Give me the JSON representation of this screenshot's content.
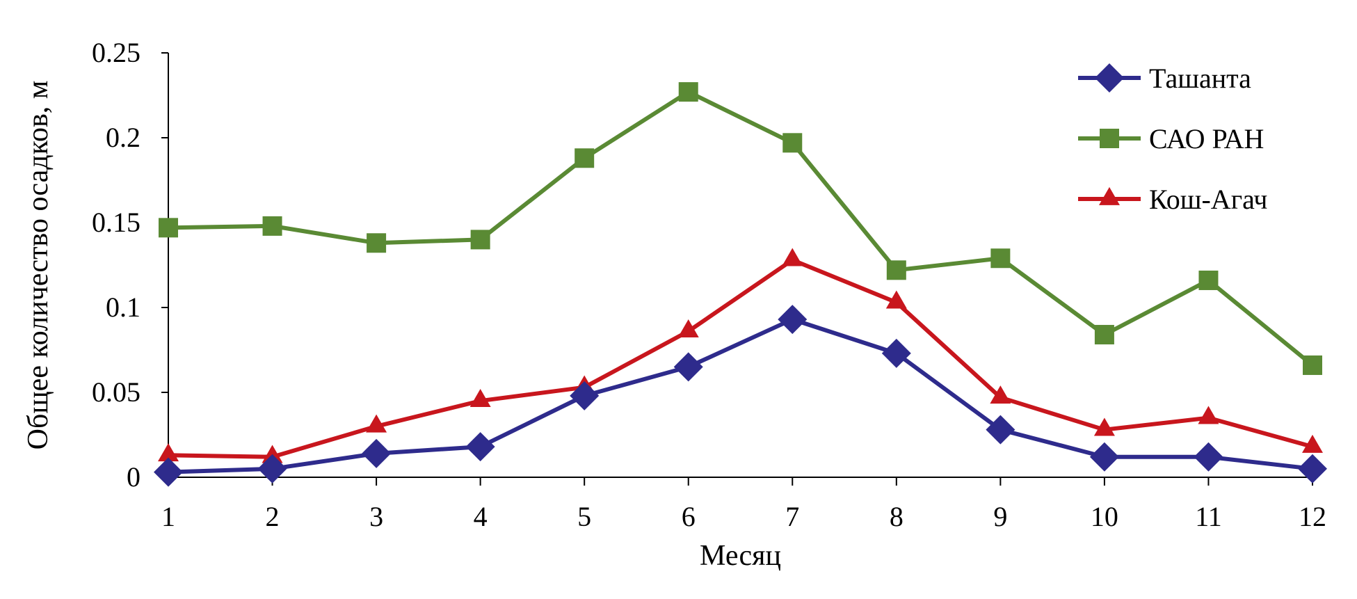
{
  "chart_data": {
    "type": "line",
    "title": "",
    "xlabel": "Месяц",
    "ylabel": "Общее количество осадков, м",
    "x": [
      1,
      2,
      3,
      4,
      5,
      6,
      7,
      8,
      9,
      10,
      11,
      12
    ],
    "x_tick_labels": [
      "1",
      "2",
      "3",
      "4",
      "5",
      "6",
      "7",
      "8",
      "9",
      "10",
      "11",
      "12"
    ],
    "ylim": [
      0,
      0.25
    ],
    "y_ticks": [
      0,
      0.05,
      0.1,
      0.15,
      0.2,
      0.25
    ],
    "y_tick_labels": [
      "0",
      "0.05",
      "0.1",
      "0.15",
      "0.2",
      "0.25"
    ],
    "grid": false,
    "legend_position": "top-right",
    "series": [
      {
        "name": "Ташанта",
        "color": "#2e2b8c",
        "marker": "diamond",
        "values": [
          0.003,
          0.005,
          0.014,
          0.018,
          0.048,
          0.065,
          0.093,
          0.073,
          0.028,
          0.012,
          0.012,
          0.005
        ]
      },
      {
        "name": "САО РАН",
        "color": "#5a8a34",
        "marker": "square",
        "values": [
          0.147,
          0.148,
          0.138,
          0.14,
          0.188,
          0.227,
          0.197,
          0.122,
          0.129,
          0.084,
          0.116,
          0.066
        ]
      },
      {
        "name": "Кош-Агач",
        "color": "#c8161d",
        "marker": "triangle",
        "values": [
          0.013,
          0.012,
          0.03,
          0.045,
          0.053,
          0.086,
          0.128,
          0.103,
          0.047,
          0.028,
          0.035,
          0.018
        ]
      }
    ]
  }
}
